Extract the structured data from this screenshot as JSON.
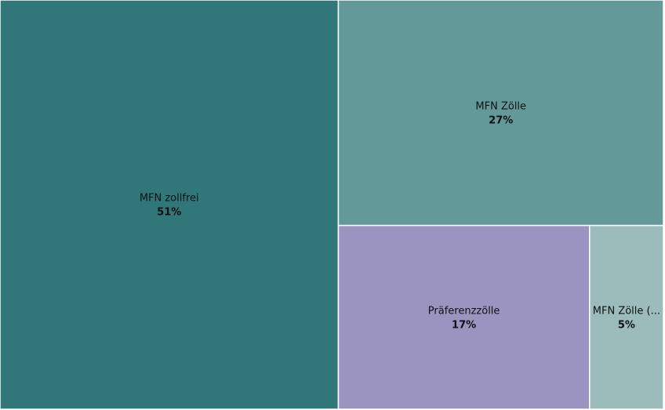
{
  "chart_data": {
    "type": "treemap",
    "categories": [
      "MFN zollfrei",
      "MFN Zölle",
      "Präferenzzölle",
      "MFN Zölle (..."
    ],
    "values": [
      51,
      27,
      17,
      5
    ],
    "value_labels": [
      "51%",
      "27%",
      "17%",
      "5%"
    ],
    "colors": [
      "#31777a",
      "#64999a",
      "#9b94c0",
      "#9bbcbb"
    ]
  }
}
